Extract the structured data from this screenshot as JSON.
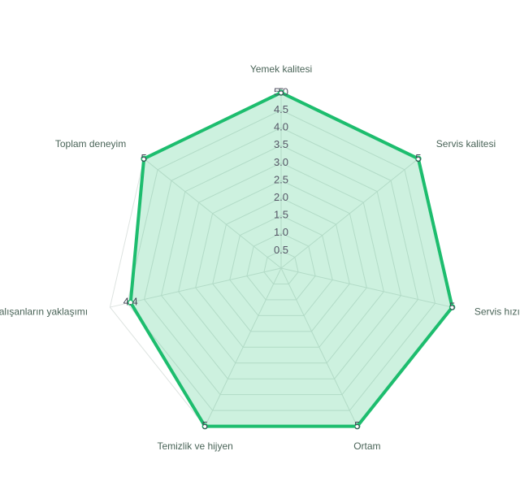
{
  "chart_data": {
    "type": "radar",
    "categories": [
      "Yemek kalitesi",
      "Servis kalitesi",
      "Servis hızı",
      "Ortam",
      "Temizlik ve hijyen",
      "Çalışanların yaklaşımı",
      "Toplam deneyim"
    ],
    "values": [
      5,
      5,
      5,
      5,
      5,
      4.4,
      5
    ],
    "color": "#1dbd6e",
    "rlim": [
      0,
      5
    ],
    "rticks": [
      0.5,
      {
        "value": 1,
        "label": "1.0"
      },
      1.5,
      {
        "value": 2,
        "label": "2.0"
      },
      2.5,
      {
        "value": 3,
        "label": "3.0"
      },
      3.5,
      {
        "value": 4,
        "label": "4.0"
      },
      4.5,
      {
        "value": 5,
        "label": "5.0"
      }
    ],
    "grid": true
  }
}
